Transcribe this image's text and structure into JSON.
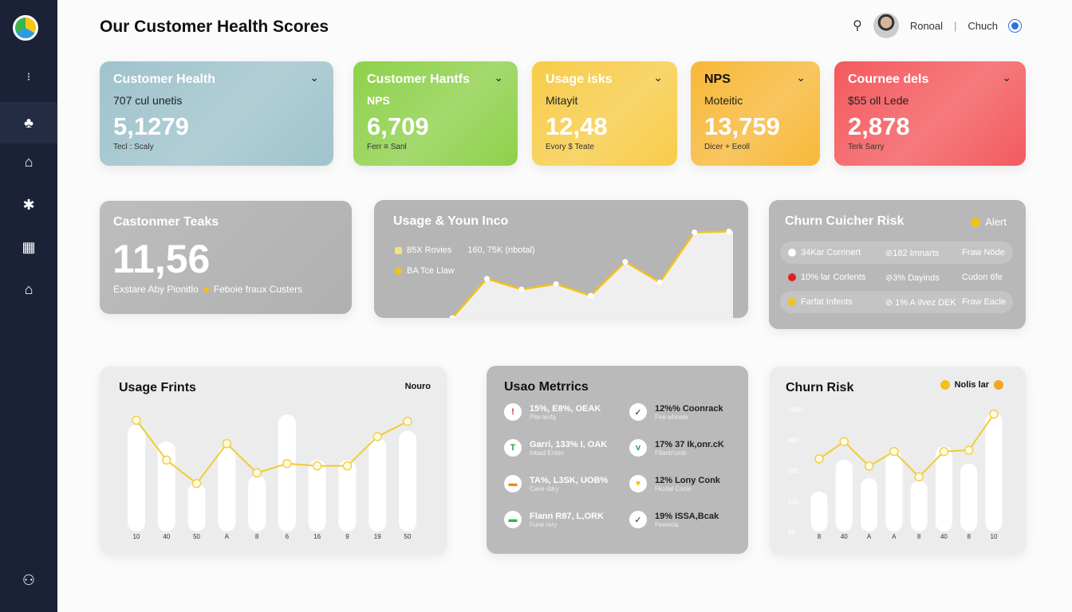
{
  "header": {
    "title": "Our Customer Health Scores",
    "user_name": "Ronoal",
    "separator": "|",
    "secondary": "Chuch"
  },
  "sidebar": {
    "items": [
      {
        "icon": "more-icon"
      },
      {
        "icon": "club-icon"
      },
      {
        "icon": "home-icon"
      },
      {
        "icon": "puzzle-icon"
      },
      {
        "icon": "grid-icon"
      },
      {
        "icon": "building-icon"
      },
      {
        "icon": "user-settings-icon"
      }
    ]
  },
  "kpis": [
    {
      "title": "Customer Health",
      "subtitle": "707 cul unetis",
      "value": "5,1279",
      "footer": "Tecl : Scaly",
      "color": "#9fc3cc"
    },
    {
      "title": "Customer Hantfs",
      "subtitle": "NPS",
      "value": "6,709",
      "footer": "Ferr ≡ Sanl",
      "color": "#8ed14a"
    },
    {
      "title": "Usage isks",
      "subtitle": "Mitayit",
      "value": "12,48",
      "footer": "Evory $ Teate",
      "color": "#f8cc48"
    },
    {
      "title": "NPS",
      "subtitle": "Moteitic",
      "value": "13,759",
      "footer": "Dicer + Eeoll",
      "color": "#f8b838"
    },
    {
      "title": "Cournee dels",
      "subtitle": "$55 oll Lede",
      "value": "2,878",
      "footer": "Terk Sarry",
      "color": "#f45a5e"
    }
  ],
  "customer_teaks": {
    "title": "Castonmer Teaks",
    "value": "11,56",
    "caption": "Exstare Aby Pionitlo",
    "legend": "Feboie fraux Custers"
  },
  "usage_income": {
    "title": "Usage & Youn Inco",
    "legend": [
      {
        "label": "85X Rovies",
        "extra": "160, 75K (nbotal)",
        "color": "#f5e27a"
      },
      {
        "label": "BA Tce Llaw",
        "color": "#f2c21b"
      }
    ]
  },
  "churn_catcher": {
    "title": "Churn Cuicher Risk",
    "alert": "Alert",
    "rows": [
      {
        "a": "34Kar Corrinert",
        "b": "⊘182 Imnarts",
        "c": "Fraw Nöde",
        "dot": "#ffffff"
      },
      {
        "a": "10% lar Corlents",
        "b": "⊘3% Dayinds",
        "c": "Cudon 6fe",
        "dot": "#e02020"
      },
      {
        "a": "Farfat Infents",
        "b": "⊘ 1% A Ilvez DEK",
        "c": "Fraw Eacle",
        "dot": "#f2c21b"
      }
    ]
  },
  "usage_metrics": {
    "title": "Usao Metrrics",
    "items": [
      {
        "text": "15%, E8%, OEAK",
        "sub": "Pite levfg",
        "icon": "!",
        "color": "#e03030"
      },
      {
        "text": "12%% Coonrack",
        "sub": "Fee whnate",
        "icon": "✓",
        "color": "#222"
      },
      {
        "text": "Garri, 133% I, OAK",
        "sub": "Inbad Enbin",
        "icon": "T",
        "color": "#2aa54a"
      },
      {
        "text": "17% 37 Ik,onr.cK",
        "sub": "Ftlanb'umb",
        "icon": "v",
        "color": "#2a9a6a"
      },
      {
        "text": "TA%, L3SK, UOB%",
        "sub": "Cave ddry",
        "icon": "▬",
        "color": "#f08a10"
      },
      {
        "text": "12% Lony Conk",
        "sub": "Fkcital Cocie",
        "icon": "♥",
        "color": "#f2c21b"
      },
      {
        "text": "Flann R87, L,ORK",
        "sub": "Fune rory",
        "icon": "▬",
        "color": "#2ab84a"
      },
      {
        "text": "19% ISSA,Bcak",
        "sub": "Fewvcla",
        "icon": "✓",
        "color": "#222"
      }
    ]
  },
  "chart_data": [
    {
      "type": "area",
      "title": "Usage & Youn Inco",
      "values": [
        0,
        44,
        32,
        38,
        25,
        63,
        40,
        96,
        97
      ],
      "ylim": [
        0,
        100
      ],
      "grid": false,
      "color": "#f2c21b"
    },
    {
      "type": "bar",
      "title": "Usage Frints",
      "legend_label": "Nouro",
      "categories": [
        "10",
        "40",
        "50",
        "A",
        "8",
        "6",
        "16",
        "9",
        "19",
        "50"
      ],
      "series": [
        {
          "type": "bar",
          "values": [
            91,
            77,
            41,
            73,
            48,
            100,
            61,
            61,
            80,
            86
          ]
        },
        {
          "type": "line",
          "values": [
            95,
            61,
            41,
            75,
            50,
            58,
            56,
            56,
            81,
            94
          ]
        }
      ],
      "ylim": [
        0,
        100
      ],
      "grid": false
    },
    {
      "type": "bar",
      "title": "Churn Risk",
      "legend_label": "Nolis lar",
      "categories": [
        "8",
        "40",
        "A",
        "A",
        "8",
        "40",
        "8",
        "10"
      ],
      "yticks": [
        "1000",
        "800",
        "500",
        "230",
        "60"
      ],
      "series": [
        {
          "type": "bar",
          "values": [
            367,
            612,
            469,
            673,
            448,
            714,
            581,
            969
          ]
        },
        {
          "type": "line",
          "values": [
            616,
            749,
            561,
            673,
            479,
            673,
            683,
            959
          ]
        }
      ],
      "ylim": [
        60,
        1000
      ],
      "grid": false
    }
  ]
}
